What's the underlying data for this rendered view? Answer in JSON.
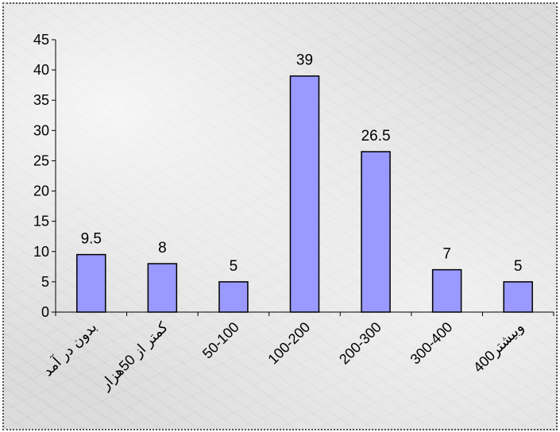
{
  "chart_data": {
    "type": "bar",
    "title": "",
    "xlabel": "",
    "ylabel": "",
    "categories": [
      "بدون در آمد",
      "کمتر از 50هزار",
      "50-100",
      "100-200",
      "200-300",
      "300-400",
      "400وبیشتر"
    ],
    "values": [
      9.5,
      8,
      5,
      39,
      26.5,
      7,
      5
    ],
    "data_labels": [
      "9.5",
      "8",
      "5",
      "39",
      "26.5",
      "7",
      "5"
    ],
    "ylim": [
      0,
      45
    ],
    "yticks": [
      "0",
      "5",
      "10",
      "15",
      "20",
      "25",
      "30",
      "35",
      "40",
      "45"
    ],
    "grid": false,
    "legend": "none",
    "colors": {
      "bar_fill": "#9999ff",
      "bar_stroke": "#000000",
      "axis": "#000000",
      "background_border": "#555555"
    }
  }
}
